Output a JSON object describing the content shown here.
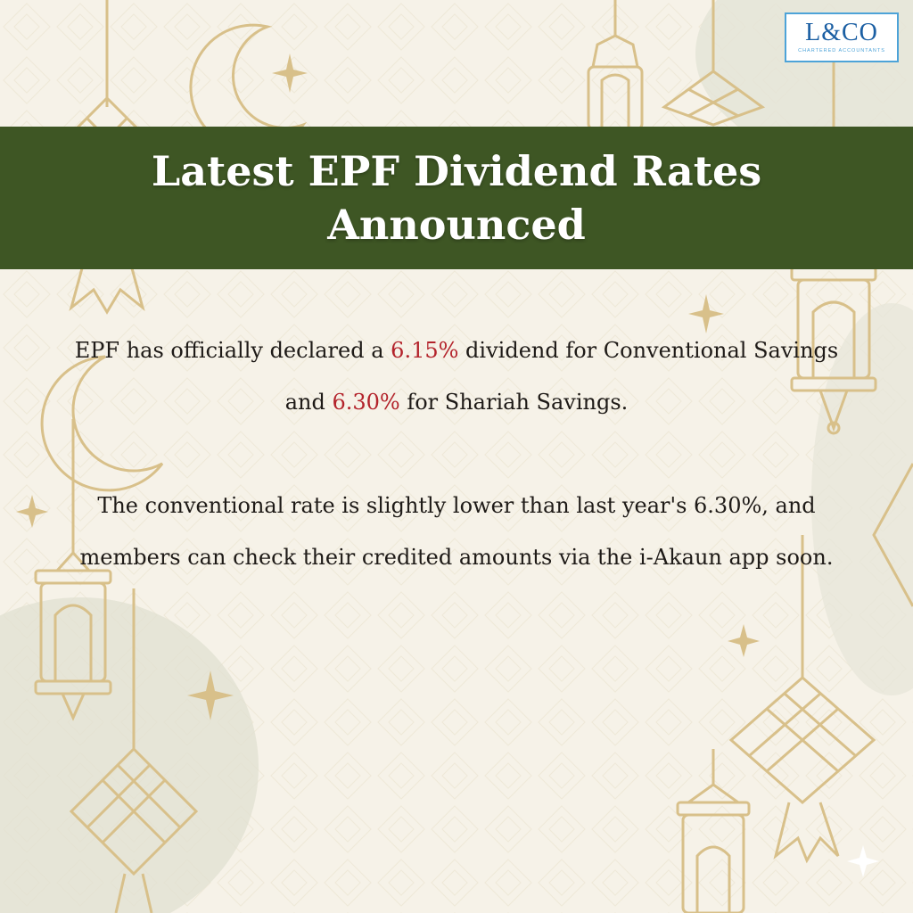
{
  "logo": {
    "text": "L&CO",
    "subtitle": "CHARTERED ACCOUNTANTS"
  },
  "title": {
    "line1": "Latest EPF Dividend Rates",
    "line2": "Announced"
  },
  "paragraph1": {
    "part1": "EPF has officially declared a ",
    "rate_conventional": "6.15%",
    "part2": " dividend for Conventional Savings and ",
    "rate_shariah": "6.30%",
    "part3": " for Shariah Savings."
  },
  "paragraph2": {
    "text": "The conventional rate is slightly lower than last year's 6.30%, and members can check their credited amounts via the i-Akaun app soon."
  },
  "colors": {
    "background": "#f6f2e8",
    "banner": "#3e5624",
    "title_text": "#ffffff",
    "highlight": "#b3232b",
    "ornament_gold": "#d8c08a",
    "logo_blue": "#1b5fa3"
  }
}
